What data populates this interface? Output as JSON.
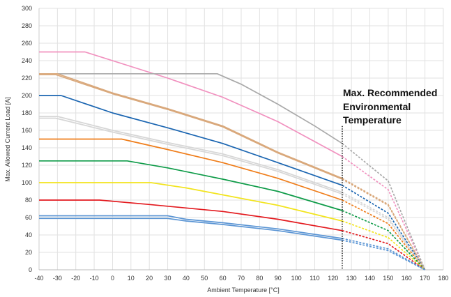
{
  "chart_data": {
    "type": "line",
    "xlabel": "Ambient Temperature [°C]",
    "ylabel": "Max. Allowed Current Load [A]",
    "xlim": [
      -40,
      180
    ],
    "ylim": [
      0,
      300
    ],
    "x_ticks": [
      -40,
      -30,
      -20,
      -10,
      0,
      10,
      20,
      30,
      40,
      50,
      60,
      70,
      80,
      90,
      100,
      110,
      120,
      130,
      140,
      150,
      160,
      170,
      180
    ],
    "y_ticks": [
      0,
      20,
      40,
      60,
      80,
      100,
      120,
      140,
      160,
      180,
      200,
      220,
      240,
      260,
      280,
      300
    ],
    "grid": true,
    "annotation": {
      "lines": [
        "Max. Recommended",
        "Environmental",
        "Temperature"
      ],
      "x": 125,
      "style": "dotted"
    },
    "solid_until_x": 125,
    "end_x": 170,
    "series": [
      {
        "color": "#f191bf",
        "values": [
          [
            -40,
            250
          ],
          [
            -15,
            250
          ],
          [
            30,
            220
          ],
          [
            60,
            198
          ],
          [
            90,
            170
          ],
          [
            125,
            130
          ],
          [
            150,
            92
          ],
          [
            170,
            0
          ]
        ]
      },
      {
        "color": "#a9a9a9",
        "values": [
          [
            -40,
            225
          ],
          [
            57,
            225
          ],
          [
            70,
            213
          ],
          [
            90,
            190
          ],
          [
            110,
            165
          ],
          [
            125,
            145
          ],
          [
            150,
            102
          ],
          [
            170,
            0
          ]
        ]
      },
      {
        "color": "#d9a87b",
        "values": [
          [
            -40,
            225
          ],
          [
            -30,
            225
          ],
          [
            0,
            203
          ],
          [
            30,
            185
          ],
          [
            60,
            165
          ],
          [
            90,
            135
          ],
          [
            125,
            105
          ],
          [
            150,
            75
          ],
          [
            170,
            0
          ]
        ]
      },
      {
        "color": "#d9a87b",
        "values": [
          [
            -40,
            224
          ],
          [
            -31,
            224
          ],
          [
            0,
            202
          ],
          [
            30,
            184
          ],
          [
            60,
            164
          ],
          [
            90,
            134
          ],
          [
            125,
            104
          ],
          [
            150,
            74
          ],
          [
            170,
            0
          ]
        ]
      },
      {
        "color": "#1a65b1",
        "values": [
          [
            -40,
            200
          ],
          [
            -28,
            200
          ],
          [
            0,
            180
          ],
          [
            30,
            163
          ],
          [
            60,
            145
          ],
          [
            90,
            123
          ],
          [
            125,
            97
          ],
          [
            150,
            65
          ],
          [
            170,
            0
          ]
        ]
      },
      {
        "color": "#d6d6d6",
        "values": [
          [
            -40,
            176
          ],
          [
            -30,
            176
          ],
          [
            0,
            160
          ],
          [
            30,
            146
          ],
          [
            60,
            133
          ],
          [
            90,
            115
          ],
          [
            125,
            89
          ],
          [
            150,
            60
          ],
          [
            170,
            0
          ]
        ]
      },
      {
        "color": "#d6d6d6",
        "values": [
          [
            -40,
            174
          ],
          [
            -31,
            174
          ],
          [
            0,
            158
          ],
          [
            30,
            144
          ],
          [
            60,
            131
          ],
          [
            90,
            113
          ],
          [
            125,
            87
          ],
          [
            150,
            58
          ],
          [
            170,
            0
          ]
        ]
      },
      {
        "color": "#ef7d1a",
        "values": [
          [
            -40,
            150
          ],
          [
            5,
            150
          ],
          [
            30,
            138
          ],
          [
            60,
            123
          ],
          [
            90,
            105
          ],
          [
            125,
            80
          ],
          [
            150,
            53
          ],
          [
            170,
            0
          ]
        ]
      },
      {
        "color": "#0e9b48",
        "values": [
          [
            -40,
            125
          ],
          [
            8,
            125
          ],
          [
            30,
            117
          ],
          [
            60,
            104
          ],
          [
            90,
            90
          ],
          [
            125,
            68
          ],
          [
            150,
            45
          ],
          [
            170,
            0
          ]
        ]
      },
      {
        "color": "#f2e41d",
        "values": [
          [
            -40,
            100
          ],
          [
            21,
            100
          ],
          [
            40,
            94
          ],
          [
            60,
            86
          ],
          [
            90,
            74
          ],
          [
            125,
            56
          ],
          [
            150,
            37
          ],
          [
            170,
            0
          ]
        ]
      },
      {
        "color": "#e3191e",
        "values": [
          [
            -40,
            80
          ],
          [
            -7,
            80
          ],
          [
            20,
            75
          ],
          [
            40,
            71
          ],
          [
            60,
            67
          ],
          [
            90,
            58
          ],
          [
            125,
            45
          ],
          [
            150,
            30
          ],
          [
            170,
            0
          ]
        ]
      },
      {
        "color": "#5b95d4",
        "values": [
          [
            -40,
            62
          ],
          [
            30,
            62
          ],
          [
            40,
            58
          ],
          [
            60,
            54
          ],
          [
            90,
            47
          ],
          [
            125,
            36
          ],
          [
            150,
            24
          ],
          [
            170,
            0
          ]
        ]
      },
      {
        "color": "#5b95d4",
        "values": [
          [
            -40,
            59
          ],
          [
            30,
            59
          ],
          [
            40,
            56
          ],
          [
            60,
            52
          ],
          [
            90,
            45
          ],
          [
            125,
            34
          ],
          [
            150,
            22
          ],
          [
            170,
            0
          ]
        ]
      }
    ]
  }
}
